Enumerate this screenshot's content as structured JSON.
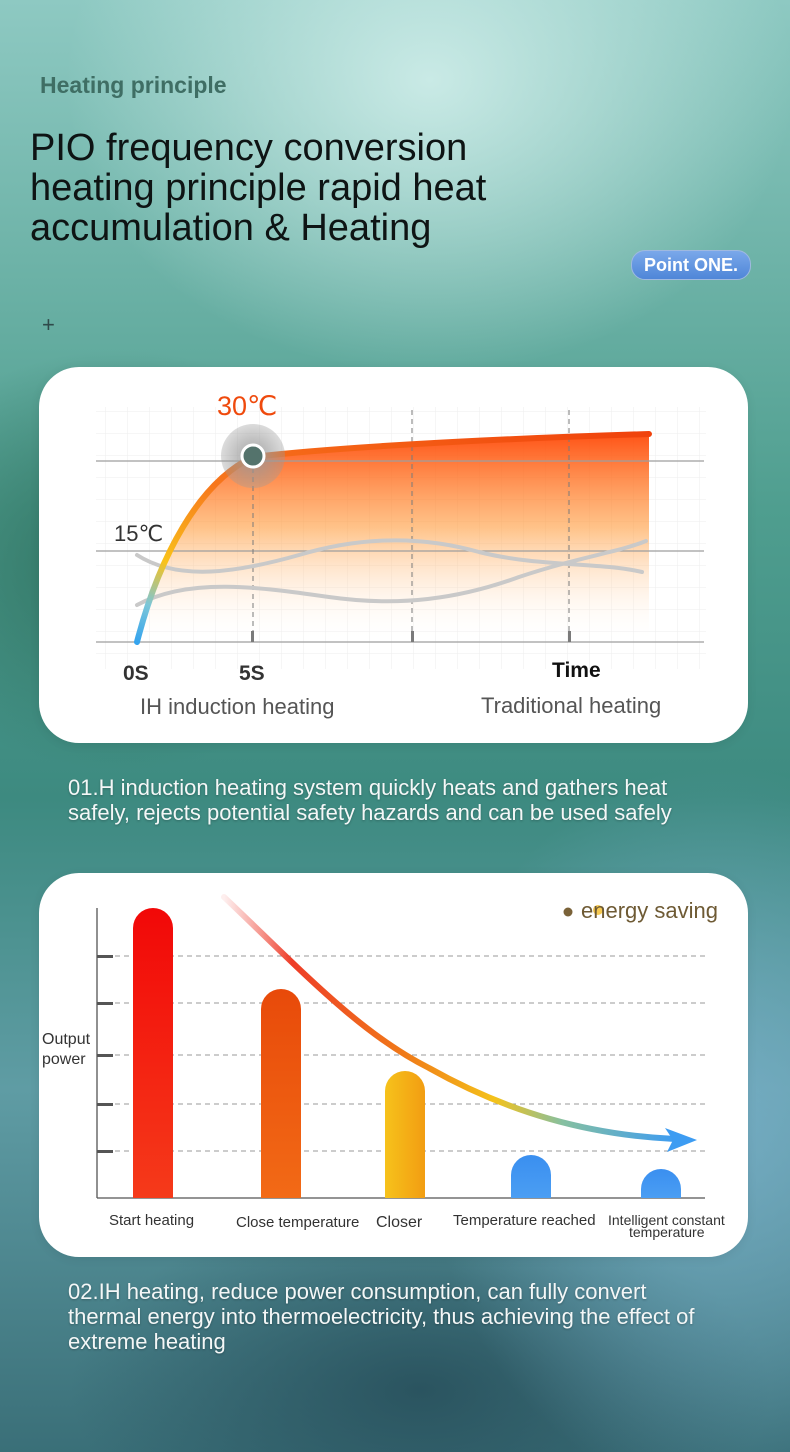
{
  "header": {
    "section_label": "Heating principle",
    "headline": "PIO frequency conversion heating principle rapid heat accumulation & Heating",
    "badge": "Point ONE."
  },
  "chart1": {
    "label_30": "30℃",
    "label_15": "15℃",
    "tick_0s": "0S",
    "tick_5s": "5S",
    "axis_time": "Time",
    "legend_ih": "IH induction heating",
    "legend_traditional": "Traditional heating",
    "colors": {
      "ih_start": "#35a4ee",
      "ih_mid": "#f9c21a",
      "ih_end": "#f0420c",
      "traditional": "#c9c9c9"
    }
  },
  "description1": "01.H induction heating system quickly heats and gathers heat safely, rejects potential safety hazards and can be used safely",
  "chart2": {
    "ylabel": "Output power",
    "legend": "energy saving",
    "categories": [
      "Start heating",
      "Close temperature",
      "Closer",
      "Temperature reached",
      "Intelligent constant temperature"
    ],
    "colors": {
      "red": "#f40a0a",
      "orange": "#ee5a0e",
      "yellow": "#f7b914",
      "blue": "#3f94f0"
    }
  },
  "description2": "02.IH heating, reduce power consumption, can fully convert thermal energy into thermoelectricity, thus achieving the effect of extreme heating"
}
